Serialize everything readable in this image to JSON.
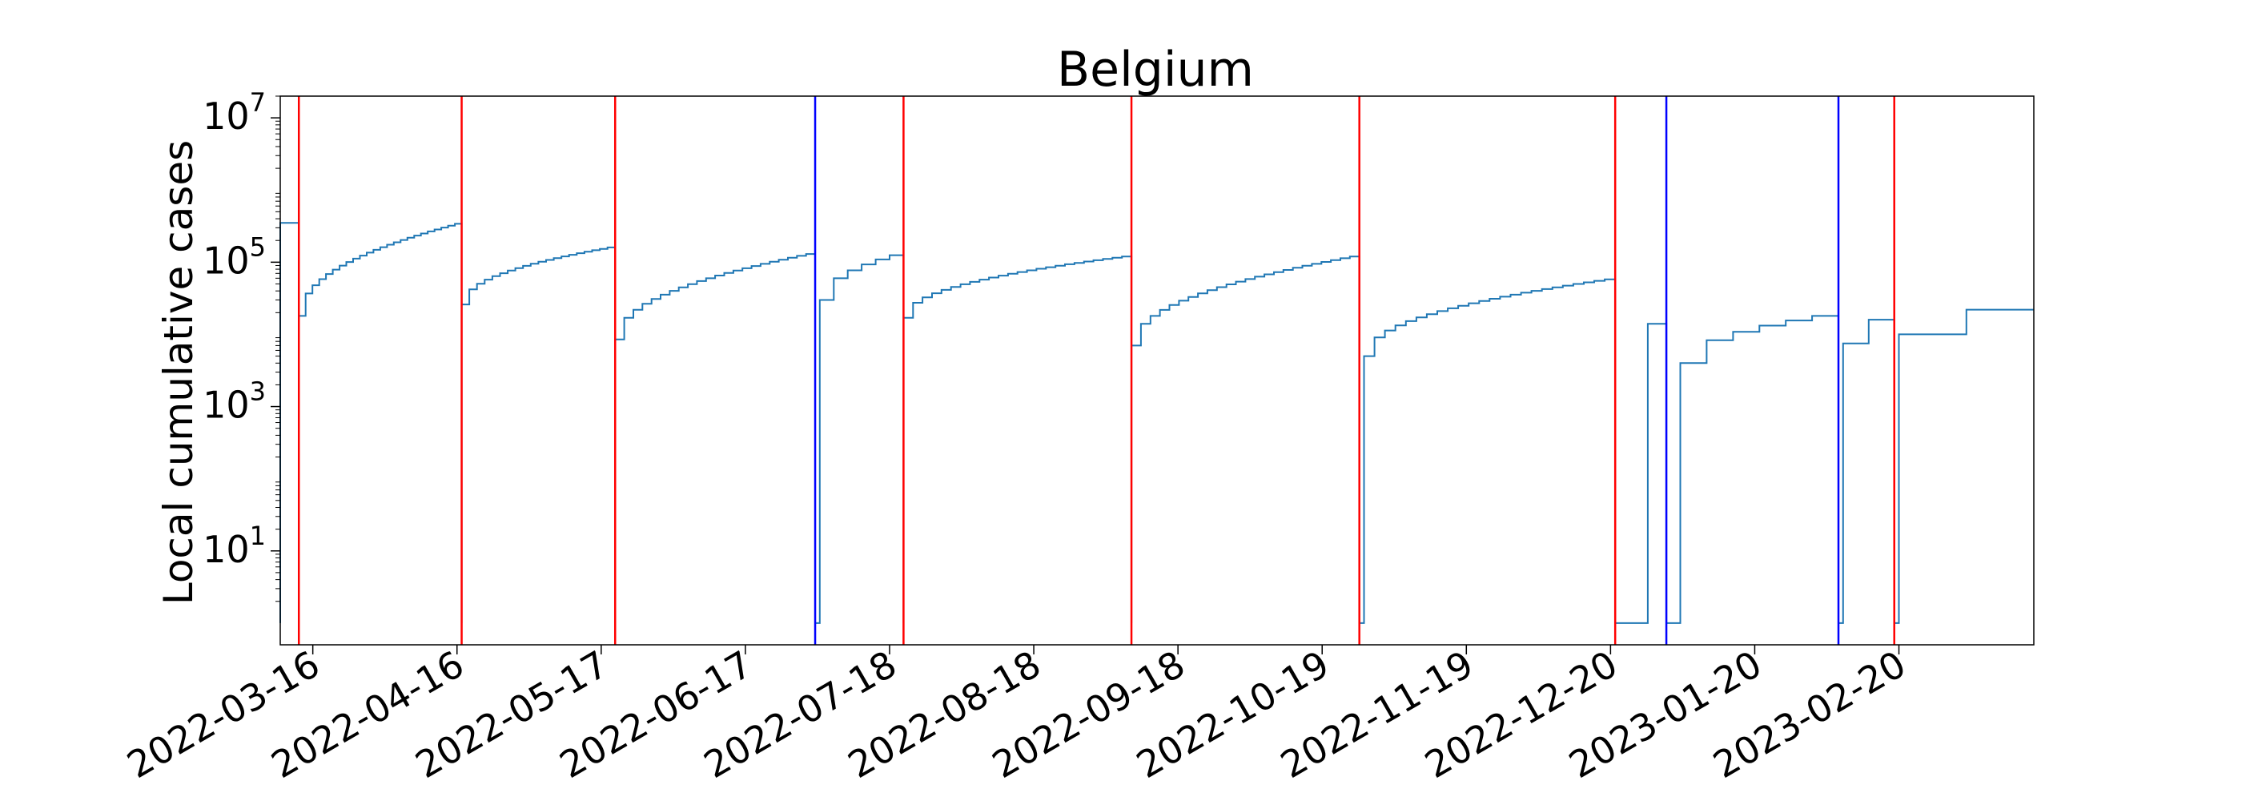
{
  "chart_data": {
    "type": "line",
    "title": "Belgium",
    "xlabel": "",
    "ylabel": "Local cumulative cases",
    "yscale": "log",
    "ylim": [
      0.5,
      20000000
    ],
    "xlim": [
      "2022-03-09",
      "2023-03-21"
    ],
    "grid": false,
    "line_color": "#1f77b4",
    "vline_colors": {
      "red": "#ff0000",
      "blue": "#0000ff"
    },
    "x_ticks": [
      "2022-03-16",
      "2022-04-16",
      "2022-05-17",
      "2022-06-17",
      "2022-07-18",
      "2022-08-18",
      "2022-09-18",
      "2022-10-19",
      "2022-11-19",
      "2022-12-20",
      "2023-01-20",
      "2023-02-20"
    ],
    "y_ticks": [
      {
        "value": 10,
        "base": "10",
        "exp": "1"
      },
      {
        "value": 1000,
        "base": "10",
        "exp": "3"
      },
      {
        "value": 100000,
        "base": "10",
        "exp": "5"
      },
      {
        "value": 10000000,
        "base": "10",
        "exp": "7"
      }
    ],
    "vertical_lines": [
      {
        "date": "2022-03-13",
        "color": "red"
      },
      {
        "date": "2022-04-17",
        "color": "red"
      },
      {
        "date": "2022-05-20",
        "color": "red"
      },
      {
        "date": "2022-07-02",
        "color": "blue"
      },
      {
        "date": "2022-07-21",
        "color": "red"
      },
      {
        "date": "2022-09-08",
        "color": "red"
      },
      {
        "date": "2022-10-27",
        "color": "red"
      },
      {
        "date": "2022-12-21",
        "color": "red"
      },
      {
        "date": "2023-01-01",
        "color": "blue"
      },
      {
        "date": "2023-02-07",
        "color": "blue"
      },
      {
        "date": "2023-02-19",
        "color": "red"
      }
    ],
    "segments": [
      {
        "start": "2022-03-09",
        "end": "2022-03-13",
        "start_value": 350000,
        "end_value": 380000,
        "steps": 1,
        "lead_days": 0,
        "floor": false
      },
      {
        "start": "2022-03-13",
        "end": "2022-04-17",
        "start_value": 18000,
        "end_value": 340000,
        "steps": 24,
        "lead_days": 0,
        "floor": false
      },
      {
        "start": "2022-04-17",
        "end": "2022-05-20",
        "start_value": 26000,
        "end_value": 160000,
        "steps": 20,
        "lead_days": 0,
        "floor": false
      },
      {
        "start": "2022-05-20",
        "end": "2022-07-02",
        "start_value": 8500,
        "end_value": 130000,
        "steps": 22,
        "lead_days": 0,
        "floor": false
      },
      {
        "start": "2022-07-02",
        "end": "2022-07-21",
        "start_value": 30000,
        "end_value": 125000,
        "steps": 6,
        "lead_days": 1,
        "floor": false
      },
      {
        "start": "2022-07-21",
        "end": "2022-09-08",
        "start_value": 17000,
        "end_value": 120000,
        "steps": 24,
        "lead_days": 0,
        "floor": false
      },
      {
        "start": "2022-09-08",
        "end": "2022-10-27",
        "start_value": 7000,
        "end_value": 120000,
        "steps": 24,
        "lead_days": 0,
        "floor": false
      },
      {
        "start": "2022-10-27",
        "end": "2022-12-21",
        "start_value": 5000,
        "end_value": 58000,
        "steps": 24,
        "lead_days": 1,
        "floor": false
      },
      {
        "start": "2022-12-21",
        "end": "2023-01-01",
        "start_value": 14000,
        "end_value": 14000,
        "steps": 1,
        "lead_days": 7,
        "floor": false
      },
      {
        "start": "2023-01-01",
        "end": "2023-02-07",
        "start_value": 4000,
        "end_value": 18000,
        "steps": 6,
        "lead_days": 3,
        "floor": false
      },
      {
        "start": "2023-02-07",
        "end": "2023-02-19",
        "start_value": 7500,
        "end_value": 16000,
        "steps": 2,
        "lead_days": 1,
        "floor": false
      },
      {
        "start": "2023-02-19",
        "end": "2023-03-21",
        "start_value": 10000,
        "end_value": 22000,
        "steps": 2,
        "lead_days": 1,
        "floor": false
      }
    ]
  }
}
